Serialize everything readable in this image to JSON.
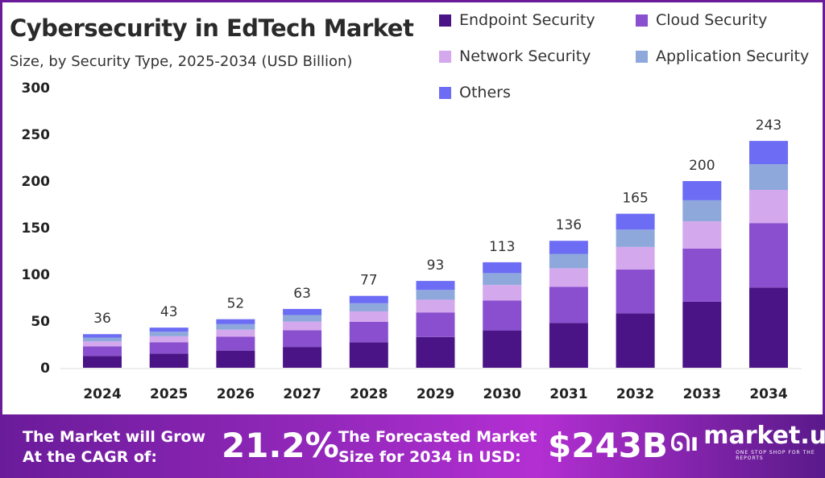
{
  "header": {
    "title": "Cybersecurity in EdTech Market",
    "subtitle": "Size, by Security Type, 2025-2034 (USD Billion)"
  },
  "chart_data": {
    "type": "bar",
    "stacked": true,
    "title": "Cybersecurity in EdTech Market",
    "subtitle": "Size, by Security Type, 2025-2034 (USD Billion)",
    "categories": [
      "2024",
      "2025",
      "2026",
      "2027",
      "2028",
      "2029",
      "2030",
      "2031",
      "2032",
      "2033",
      "2034"
    ],
    "totals": [
      36,
      43,
      52,
      63,
      77,
      93,
      113,
      136,
      165,
      200,
      243
    ],
    "series": [
      {
        "name": "Endpoint Security",
        "color": "#4a1486",
        "values": [
          12.7,
          15.2,
          18.4,
          22.3,
          27.3,
          32.9,
          40.0,
          48.1,
          58.4,
          70.8,
          86.0
        ]
      },
      {
        "name": "Cloud Security",
        "color": "#8a4fcf",
        "values": [
          10.2,
          12.2,
          14.8,
          17.9,
          21.9,
          26.4,
          32.1,
          38.6,
          46.9,
          56.8,
          69.0
        ]
      },
      {
        "name": "Network Security",
        "color": "#d4a8ec",
        "values": [
          5.3,
          6.3,
          7.6,
          9.2,
          11.2,
          13.6,
          16.5,
          19.9,
          24.1,
          29.2,
          35.5
        ]
      },
      {
        "name": "Application Security",
        "color": "#8fa8dc",
        "values": [
          4.1,
          4.9,
          5.9,
          7.1,
          8.7,
          10.5,
          12.8,
          15.4,
          18.6,
          22.6,
          27.5
        ]
      },
      {
        "name": "Others",
        "color": "#6c6cf5",
        "values": [
          3.7,
          4.4,
          5.3,
          6.5,
          7.9,
          9.6,
          11.6,
          14.0,
          17.0,
          20.6,
          25.0
        ]
      }
    ],
    "yticks": [
      "0",
      "50",
      "100",
      "150",
      "200",
      "250",
      "300"
    ],
    "ylim": [
      0,
      300
    ],
    "grid": false,
    "legend": "top-right"
  },
  "footer": {
    "cagr_label_1": "The Market will Grow",
    "cagr_label_2": "At the CAGR of:",
    "cagr_value": "21.2%",
    "forecast_label_1": "The Forecasted Market",
    "forecast_label_2": "Size for 2034 in USD:",
    "forecast_value": "$243B",
    "brand": "market.us",
    "tagline": "ONE STOP SHOP FOR THE REPORTS"
  }
}
